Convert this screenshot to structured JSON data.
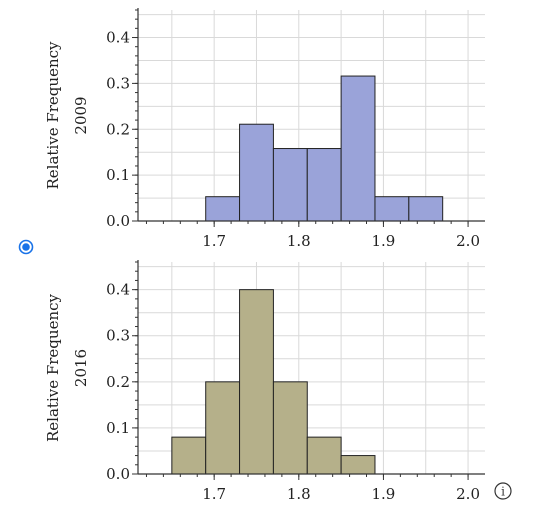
{
  "chart_data": [
    {
      "type": "bar",
      "variant": "histogram",
      "title": "",
      "ylabel_line1": "Relative Frequency",
      "ylabel_line2": "2009",
      "xlabel": "",
      "bins": [
        {
          "x0": 1.69,
          "x1": 1.73,
          "value": 0.053
        },
        {
          "x0": 1.73,
          "x1": 1.77,
          "value": 0.211
        },
        {
          "x0": 1.77,
          "x1": 1.81,
          "value": 0.158
        },
        {
          "x0": 1.81,
          "x1": 1.85,
          "value": 0.158
        },
        {
          "x0": 1.85,
          "x1": 1.89,
          "value": 0.316
        },
        {
          "x0": 1.89,
          "x1": 1.93,
          "value": 0.053
        },
        {
          "x0": 1.93,
          "x1": 1.97,
          "value": 0.053
        }
      ],
      "xlim": [
        1.61,
        2.02
      ],
      "ylim": [
        0,
        0.46
      ],
      "x_ticks": [
        "1.7",
        "1.8",
        "1.9",
        "2.0"
      ],
      "y_ticks": [
        "0.0",
        "0.1",
        "0.2",
        "0.3",
        "0.4"
      ],
      "bar_color": "#9aa3d9",
      "grid": true
    },
    {
      "type": "bar",
      "variant": "histogram",
      "title": "",
      "ylabel_line1": "Relative Frequency",
      "ylabel_line2": "2016",
      "xlabel": "",
      "bins": [
        {
          "x0": 1.65,
          "x1": 1.69,
          "value": 0.08
        },
        {
          "x0": 1.69,
          "x1": 1.73,
          "value": 0.2
        },
        {
          "x0": 1.73,
          "x1": 1.77,
          "value": 0.4
        },
        {
          "x0": 1.77,
          "x1": 1.81,
          "value": 0.2
        },
        {
          "x0": 1.81,
          "x1": 1.85,
          "value": 0.08
        },
        {
          "x0": 1.85,
          "x1": 1.89,
          "value": 0.04
        }
      ],
      "xlim": [
        1.61,
        2.02
      ],
      "ylim": [
        0,
        0.46
      ],
      "x_ticks": [
        "1.7",
        "1.8",
        "1.9",
        "2.0"
      ],
      "y_ticks": [
        "0.0",
        "0.1",
        "0.2",
        "0.3",
        "0.4"
      ],
      "bar_color": "#b5b08a",
      "grid": true
    }
  ],
  "controls": {
    "radio_selected": true,
    "info_glyph": "i",
    "radio_icon": "radio-button-icon",
    "info_icon": "info-icon"
  }
}
